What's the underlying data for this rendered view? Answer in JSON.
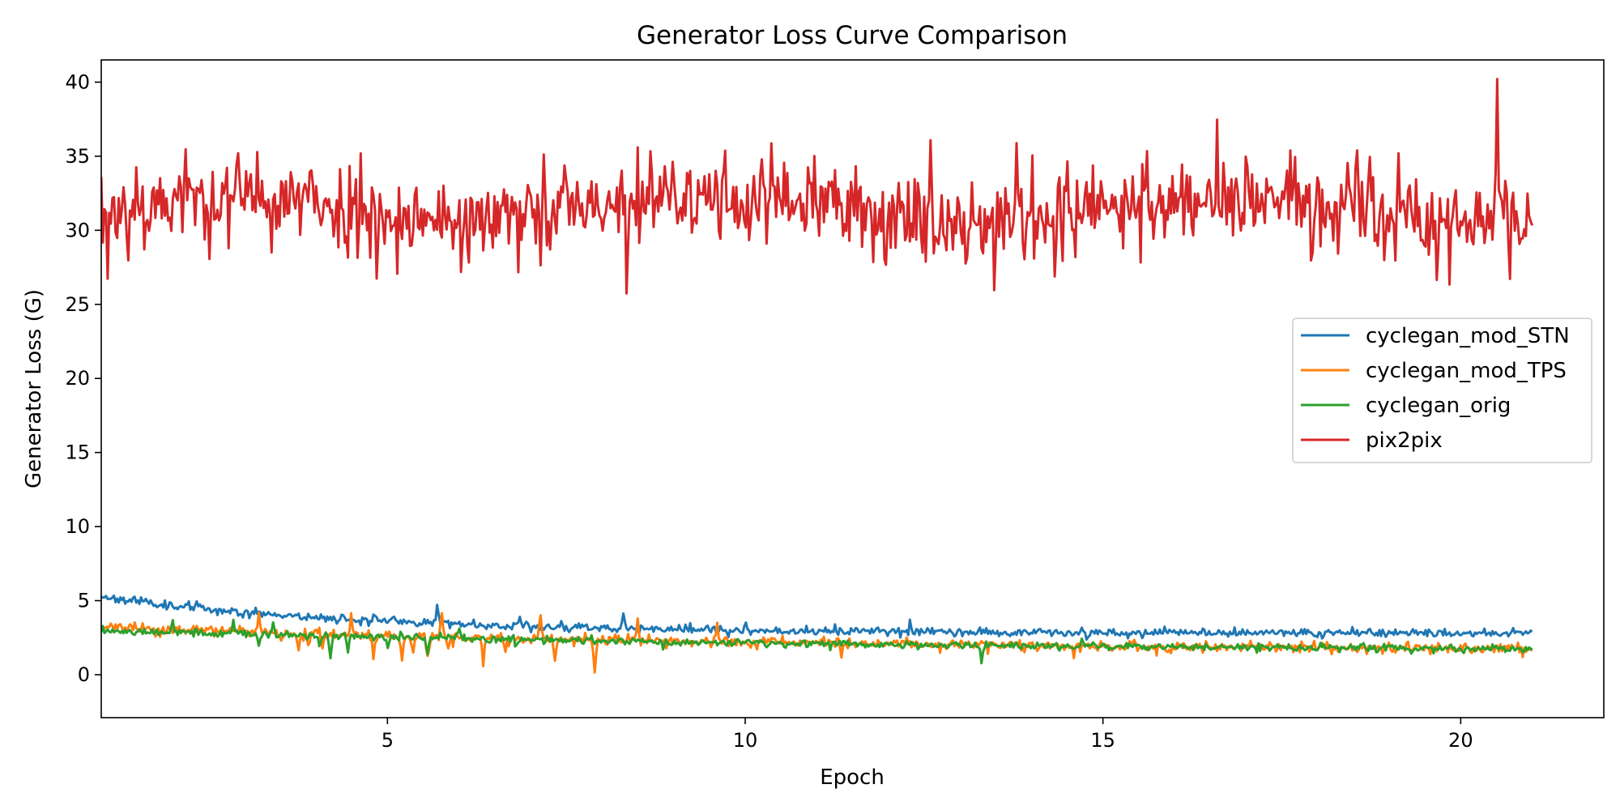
{
  "chart_data": {
    "type": "line",
    "title": "Generator Loss Curve Comparison",
    "xlabel": "Epoch",
    "ylabel": "Generator Loss (G)",
    "xlim": [
      1,
      22
    ],
    "ylim": [
      -2.9,
      41.5
    ],
    "xticks": [
      5,
      10,
      15,
      20
    ],
    "yticks": [
      0,
      5,
      10,
      15,
      20,
      25,
      30,
      35,
      40
    ],
    "grid": false,
    "legend_position": "center-right",
    "x_range": [
      1.0,
      21.0
    ],
    "points_per_series": 900,
    "series": [
      {
        "name": "cyclegan_mod_STN",
        "color": "#1f77b4",
        "start": 5.3,
        "end": 2.8,
        "decay": 0.18,
        "noise": 0.18,
        "spikes": [
          [
            5.7,
            1.3
          ],
          [
            6.85,
            0.7
          ],
          [
            8.3,
            1.1
          ],
          [
            10.0,
            0.5
          ],
          [
            12.3,
            0.7
          ],
          [
            4.8,
            0.5
          ],
          [
            18.7,
            0.4
          ]
        ],
        "seed": 11
      },
      {
        "name": "cyclegan_mod_TPS",
        "color": "#ff7f0e",
        "start": 3.2,
        "end": 1.6,
        "decay": 0.45,
        "noise": 0.22,
        "spikes": [
          [
            3.2,
            1.2
          ],
          [
            3.75,
            -1.1
          ],
          [
            3.9,
            -1.2
          ],
          [
            4.1,
            -1.0
          ],
          [
            4.5,
            1.2
          ],
          [
            4.8,
            -1.7
          ],
          [
            5.2,
            -1.6
          ],
          [
            5.35,
            -1.0
          ],
          [
            5.55,
            -1.3
          ],
          [
            5.75,
            1.8
          ],
          [
            5.85,
            -1.0
          ],
          [
            6.35,
            -2.0
          ],
          [
            6.65,
            -1.0
          ],
          [
            7.15,
            1.5
          ],
          [
            7.35,
            -1.9
          ],
          [
            7.9,
            -2.3
          ],
          [
            8.5,
            1.6
          ],
          [
            9.6,
            1.3
          ],
          [
            11.35,
            -0.8
          ],
          [
            14.6,
            -0.8
          ]
        ],
        "seed": 23
      },
      {
        "name": "cyclegan_orig",
        "color": "#2ca02c",
        "start": 3.0,
        "end": 1.5,
        "decay": 0.55,
        "noise": 0.16,
        "spikes": [
          [
            2.0,
            0.9
          ],
          [
            2.85,
            0.7
          ],
          [
            3.2,
            -0.9
          ],
          [
            3.4,
            0.9
          ],
          [
            4.05,
            -0.8
          ],
          [
            4.2,
            -1.6
          ],
          [
            4.45,
            -1.0
          ],
          [
            5.0,
            -0.7
          ],
          [
            5.55,
            -1.2
          ],
          [
            6.0,
            0.6
          ],
          [
            8.85,
            -0.5
          ],
          [
            10.3,
            -0.4
          ],
          [
            13.3,
            -1.1
          ],
          [
            14.7,
            0.6
          ]
        ],
        "seed": 37
      },
      {
        "name": "pix2pix",
        "color": "#d62728",
        "base": 31.4,
        "wave": 0.8,
        "noise": 1.55,
        "spikes": [
          [
            20.5,
            7.8
          ],
          [
            12.6,
            4.6
          ],
          [
            7.5,
            4.0
          ],
          [
            13.8,
            4.0
          ],
          [
            16.6,
            3.9
          ],
          [
            8.35,
            -4.2
          ],
          [
            17.9,
            -4.4
          ],
          [
            19.85,
            -4.0
          ],
          [
            1.1,
            -3.4
          ]
        ],
        "seed": 53
      }
    ]
  }
}
